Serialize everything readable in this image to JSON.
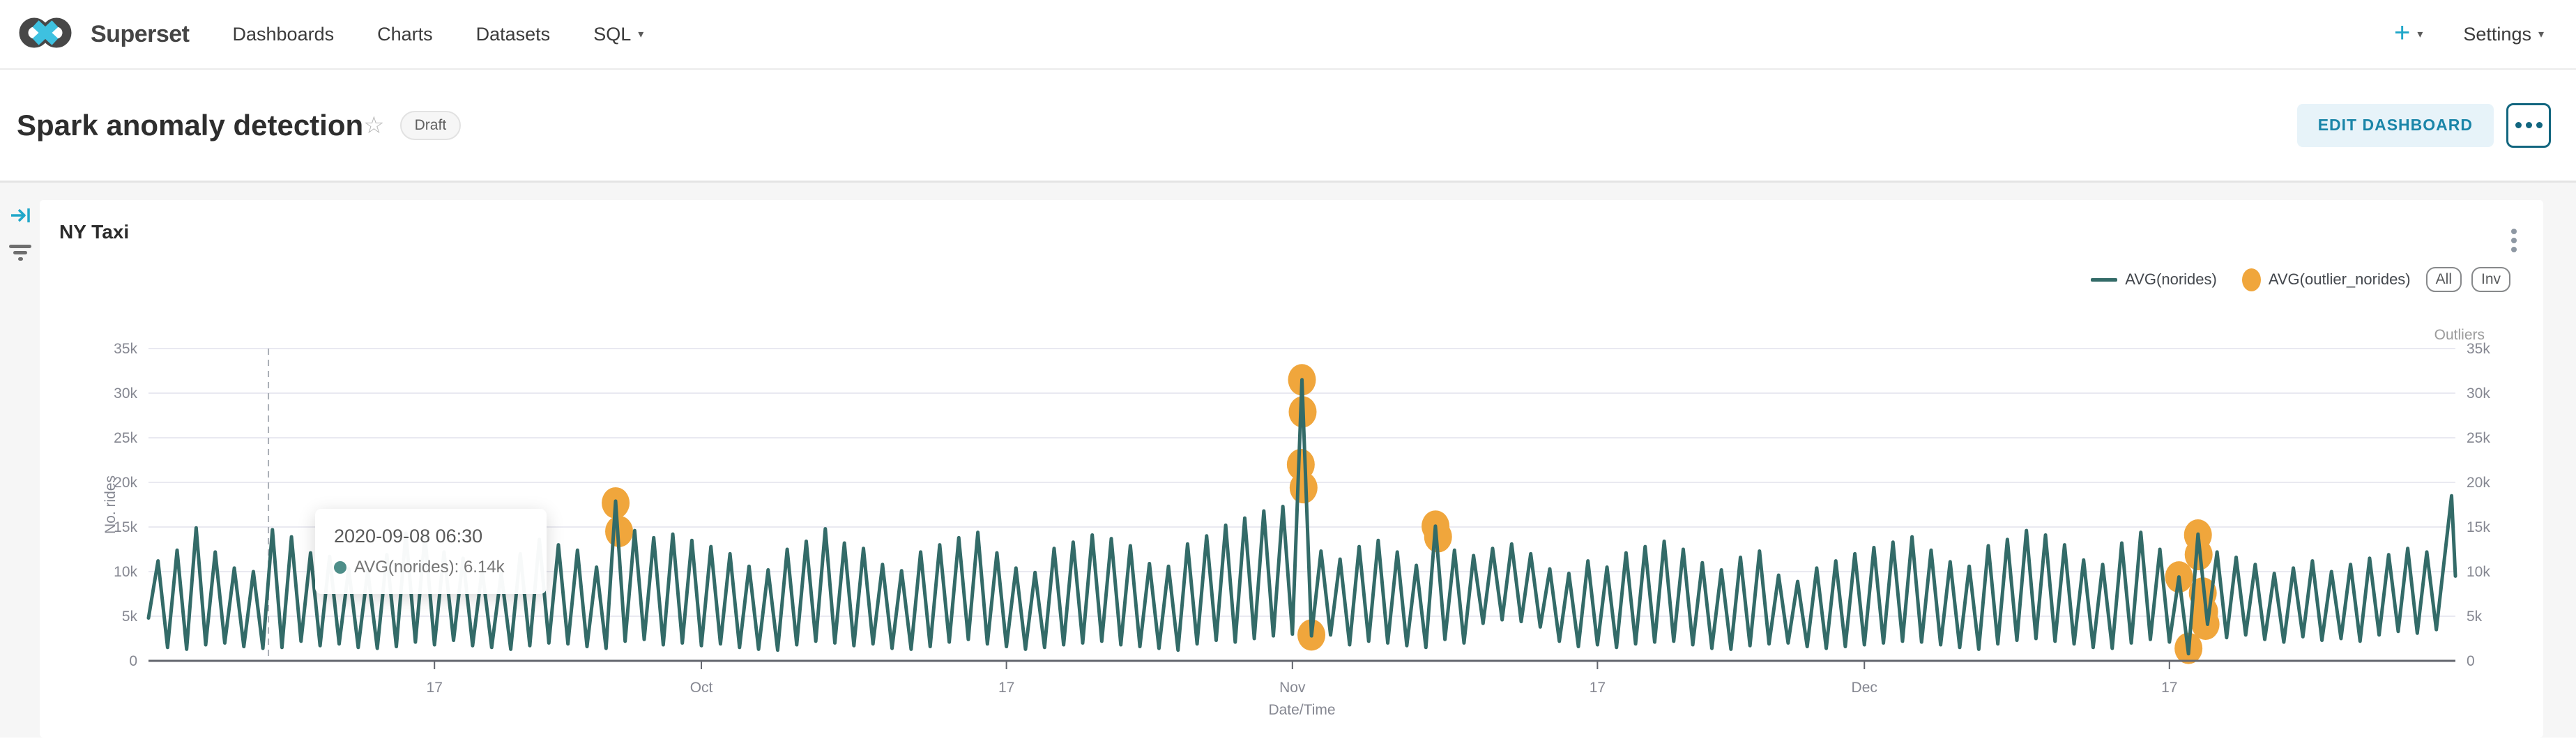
{
  "navbar": {
    "brand": "Superset",
    "items": [
      {
        "label": "Dashboards"
      },
      {
        "label": "Charts"
      },
      {
        "label": "Datasets"
      },
      {
        "label": "SQL",
        "caret": "▾"
      }
    ],
    "plus_label": "+",
    "plus_caret": "▾",
    "settings_label": "Settings",
    "settings_caret": "▾"
  },
  "header": {
    "title": "Spark anomaly detection",
    "star_icon": "☆",
    "badge": "Draft",
    "edit_button": "EDIT DASHBOARD"
  },
  "chart": {
    "title": "NY Taxi",
    "legend": [
      {
        "label": "AVG(norides)",
        "swatch": "line",
        "color": "#336B68"
      },
      {
        "label": "AVG(outlier_norides)",
        "swatch": "circle",
        "color": "#F0A63C"
      }
    ],
    "legend_buttons": [
      {
        "label": "All"
      },
      {
        "label": "Inv"
      }
    ],
    "outliers_caption": "Outliers",
    "tooltip": {
      "datetime": "2020-09-08 06:30",
      "row_text": "AVG(norides): 6.14k"
    }
  },
  "chart_data": {
    "type": "line+scatter",
    "title": "NY Taxi",
    "xlabel": "Date/Time",
    "ylabel": "No. rides",
    "units": "rides, values in thousands (k)",
    "ylim_k": [
      0,
      35
    ],
    "y_ticks": [
      {
        "v": 0,
        "label": "0"
      },
      {
        "v": 5,
        "label": "5k"
      },
      {
        "v": 10,
        "label": "10k"
      },
      {
        "v": 15,
        "label": "15k"
      },
      {
        "v": 20,
        "label": "20k"
      },
      {
        "v": 25,
        "label": "25k"
      },
      {
        "v": 30,
        "label": "30k"
      },
      {
        "v": 35,
        "label": "35k"
      }
    ],
    "x_range": "2020-09-02 to 2021-01-01",
    "total_days": 121,
    "x_ticks": [
      {
        "label": "17",
        "day": 15
      },
      {
        "label": "Oct",
        "day": 29
      },
      {
        "label": "17",
        "day": 45
      },
      {
        "label": "Nov",
        "day": 60
      },
      {
        "label": "17",
        "day": 76
      },
      {
        "label": "Dec",
        "day": 90
      },
      {
        "label": "17",
        "day": 106
      }
    ],
    "grid": true,
    "legend_position": "top-right",
    "hover": {
      "f": 0.052,
      "datetime": "2020-09-08 06:30",
      "series": "AVG(norides)",
      "value_k": 6.14
    },
    "series": [
      {
        "name": "AVG(norides)",
        "type": "line",
        "color": "#336B68",
        "note": "daily [peak_k, trough_at_day_start_k] pairs, sawtooth of half-hourly ride counts",
        "daily_peak_trough": [
          [
            11.2,
            4.8
          ],
          [
            12.4,
            1.5
          ],
          [
            14.9,
            1.3
          ],
          [
            12.2,
            1.8
          ],
          [
            10.4,
            2.0
          ],
          [
            10.0,
            1.6
          ],
          [
            14.7,
            1.4
          ],
          [
            13.9,
            1.5
          ],
          [
            12.1,
            2.2
          ],
          [
            11.7,
            1.7
          ],
          [
            10.3,
            1.9
          ],
          [
            10.1,
            1.5
          ],
          [
            11.9,
            1.4
          ],
          [
            14.3,
            1.6
          ],
          [
            14.0,
            2.1
          ],
          [
            12.2,
            1.8
          ],
          [
            11.5,
            2.3
          ],
          [
            10.2,
            1.7
          ],
          [
            9.8,
            1.5
          ],
          [
            12.0,
            1.3
          ],
          [
            13.6,
            1.7
          ],
          [
            13.0,
            2.0
          ],
          [
            12.4,
            1.9
          ],
          [
            10.5,
            1.6
          ],
          [
            17.9,
            1.4
          ],
          [
            14.6,
            2.2
          ],
          [
            13.8,
            2.4
          ],
          [
            14.2,
            1.8
          ],
          [
            13.5,
            2.0
          ],
          [
            12.8,
            1.7
          ],
          [
            12.0,
            1.9
          ],
          [
            10.6,
            1.5
          ],
          [
            10.2,
            1.3
          ],
          [
            12.5,
            1.2
          ],
          [
            13.4,
            1.8
          ],
          [
            14.8,
            2.2
          ],
          [
            13.2,
            2.0
          ],
          [
            12.6,
            1.7
          ],
          [
            10.8,
            1.9
          ],
          [
            10.1,
            1.4
          ],
          [
            12.2,
            1.3
          ],
          [
            13.0,
            1.6
          ],
          [
            13.8,
            2.1
          ],
          [
            14.4,
            2.4
          ],
          [
            12.1,
            1.9
          ],
          [
            10.4,
            1.6
          ],
          [
            9.9,
            1.3
          ],
          [
            12.6,
            1.5
          ],
          [
            13.3,
            1.8
          ],
          [
            14.1,
            2.0
          ],
          [
            13.7,
            2.2
          ],
          [
            12.9,
            1.8
          ],
          [
            10.9,
            1.6
          ],
          [
            10.6,
            1.4
          ],
          [
            13.1,
            1.2
          ],
          [
            14.0,
            1.9
          ],
          [
            15.2,
            2.3
          ],
          [
            16.0,
            2.1
          ],
          [
            16.8,
            2.5
          ],
          [
            17.3,
            2.8
          ],
          [
            31.5,
            3.0
          ],
          [
            12.3,
            2.8
          ],
          [
            11.4,
            2.9
          ],
          [
            12.8,
            1.8
          ],
          [
            13.5,
            2.2
          ],
          [
            12.2,
            2.0
          ],
          [
            10.7,
            1.7
          ],
          [
            15.1,
            1.5
          ],
          [
            12.4,
            2.4
          ],
          [
            11.8,
            2.0
          ],
          [
            12.6,
            4.2
          ],
          [
            13.1,
            4.6
          ],
          [
            12.0,
            4.4
          ],
          [
            10.3,
            3.8
          ],
          [
            9.8,
            2.2
          ],
          [
            11.2,
            1.6
          ],
          [
            10.5,
            1.8
          ],
          [
            12.1,
            1.5
          ],
          [
            12.8,
            1.9
          ],
          [
            13.4,
            2.1
          ],
          [
            12.5,
            2.2
          ],
          [
            11.0,
            1.8
          ],
          [
            10.2,
            1.4
          ],
          [
            11.6,
            1.3
          ],
          [
            12.3,
            1.7
          ],
          [
            9.6,
            1.9
          ],
          [
            8.9,
            2.0
          ],
          [
            10.4,
            1.6
          ],
          [
            11.2,
            1.4
          ],
          [
            12.0,
            1.6
          ],
          [
            12.7,
            1.8
          ],
          [
            13.3,
            2.0
          ],
          [
            13.9,
            2.2
          ],
          [
            12.4,
            2.1
          ],
          [
            11.1,
            1.8
          ],
          [
            10.6,
            1.5
          ],
          [
            12.9,
            1.3
          ],
          [
            13.6,
            1.9
          ],
          [
            14.6,
            2.3
          ],
          [
            14.1,
            2.5
          ],
          [
            13.0,
            2.2
          ],
          [
            11.3,
            1.9
          ],
          [
            10.8,
            1.5
          ],
          [
            13.2,
            1.4
          ],
          [
            14.4,
            2.0
          ],
          [
            12.5,
            2.4
          ],
          [
            9.4,
            2.1
          ],
          [
            14.2,
            0.8
          ],
          [
            12.2,
            4.1
          ],
          [
            11.6,
            2.6
          ],
          [
            10.8,
            2.9
          ],
          [
            9.8,
            2.4
          ],
          [
            10.4,
            2.1
          ],
          [
            11.2,
            2.7
          ],
          [
            10.0,
            2.3
          ],
          [
            10.8,
            2.5
          ],
          [
            11.5,
            2.2
          ],
          [
            11.9,
            2.9
          ],
          [
            12.6,
            3.3
          ],
          [
            12.2,
            3.1
          ],
          [
            18.5,
            3.5
          ]
        ],
        "end_value_k": 9.5
      },
      {
        "name": "AVG(outlier_norides)",
        "type": "scatter",
        "color": "#F0A63C",
        "note": "[x_fraction_of_plot, value_k]",
        "points": [
          [
            0.2025,
            17.7
          ],
          [
            0.204,
            14.5
          ],
          [
            0.4995,
            22.0
          ],
          [
            0.5,
            31.5
          ],
          [
            0.5003,
            27.9
          ],
          [
            0.5007,
            19.4
          ],
          [
            0.5041,
            2.9
          ],
          [
            0.5579,
            15.1
          ],
          [
            0.559,
            13.9
          ],
          [
            0.8802,
            9.4
          ],
          [
            0.8843,
            1.4
          ],
          [
            0.8884,
            14.1
          ],
          [
            0.8887,
            11.9
          ],
          [
            0.8905,
            7.6
          ],
          [
            0.8911,
            5.5
          ],
          [
            0.8917,
            4.1
          ]
        ]
      }
    ],
    "colors": {
      "line": "#336B68",
      "outlier": "#F0A63C",
      "gridline": "#e9e9f1",
      "axis_line": "#63666e",
      "axis_label": "#858791",
      "hover_dash": "#a9aeb5"
    }
  }
}
